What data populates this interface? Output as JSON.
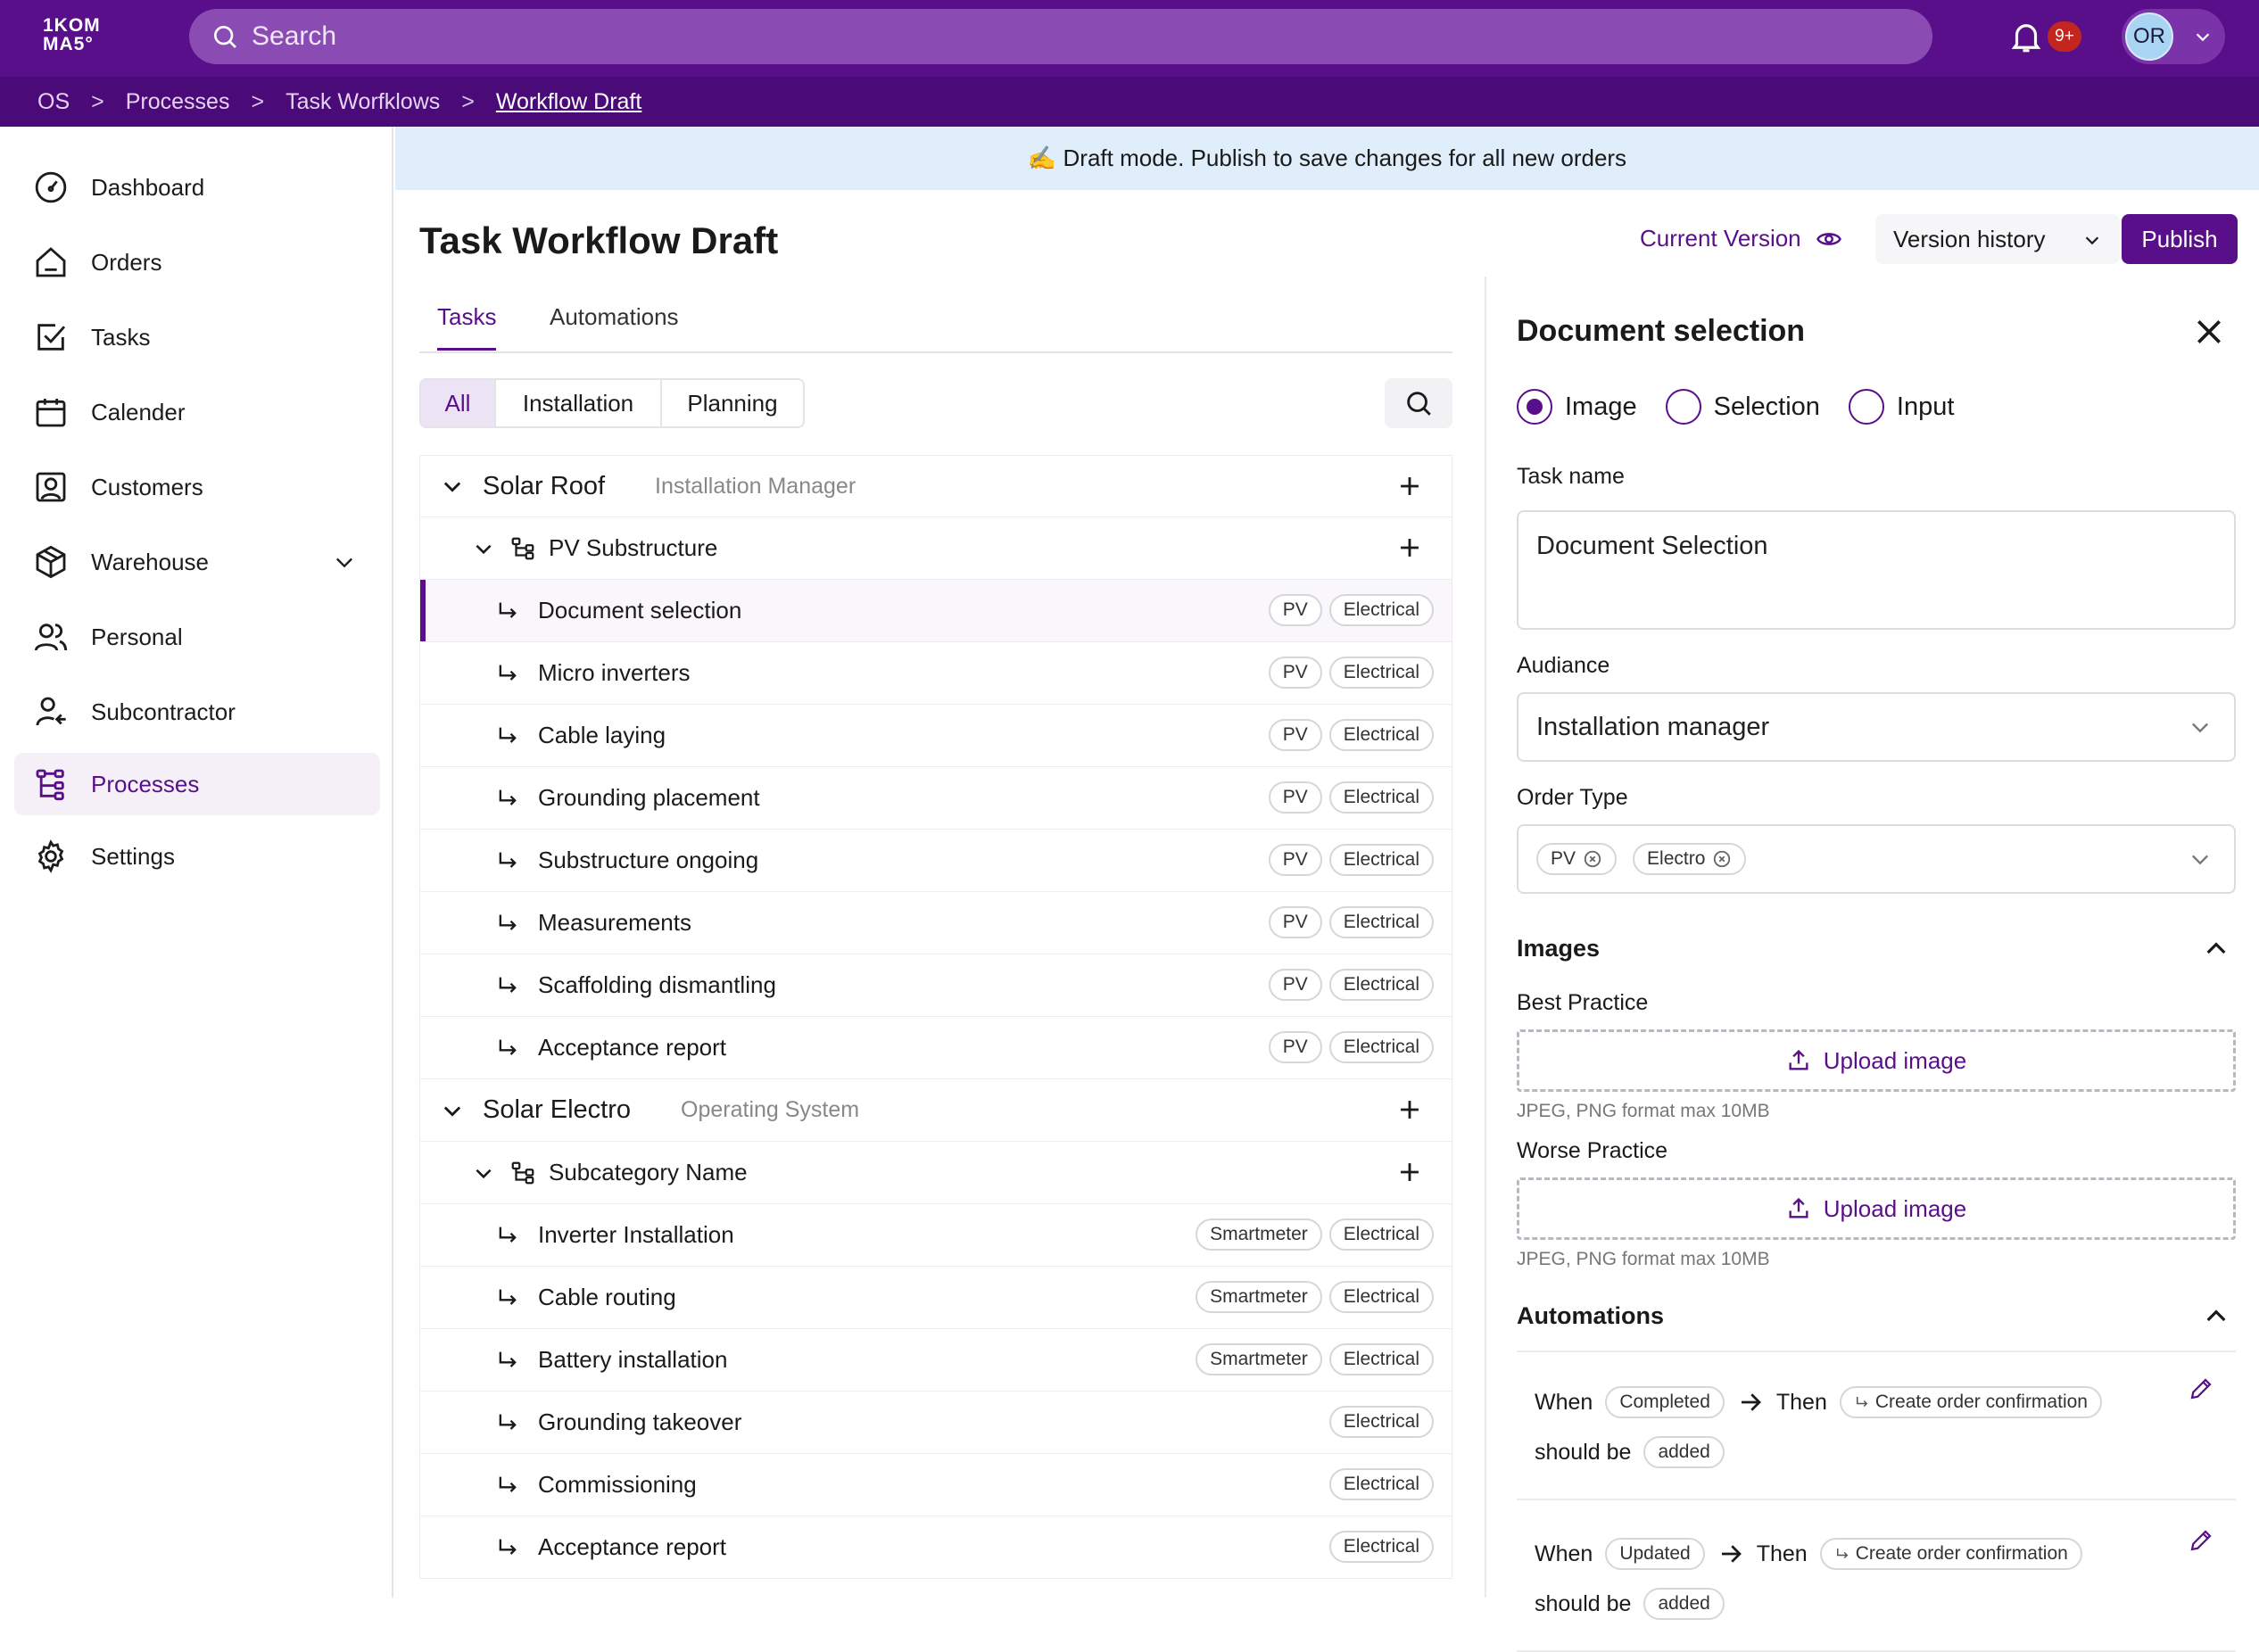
{
  "topbar": {
    "logo_line1": "1KOM",
    "logo_line2": "MA5°",
    "search_placeholder": "Search",
    "notification_count": "9+",
    "user_initials": "OR"
  },
  "breadcrumb": [
    "OS",
    "Processes",
    "Task Worfklows",
    "Workflow Draft"
  ],
  "sidebar": {
    "items": [
      {
        "label": "Dashboard",
        "icon": "gauge-icon"
      },
      {
        "label": "Orders",
        "icon": "home-icon"
      },
      {
        "label": "Tasks",
        "icon": "checkbox-icon"
      },
      {
        "label": "Calender",
        "icon": "calendar-icon"
      },
      {
        "label": "Customers",
        "icon": "contact-icon"
      },
      {
        "label": "Warehouse",
        "icon": "box-icon"
      },
      {
        "label": "Personal",
        "icon": "users-icon"
      },
      {
        "label": "Subcontractor",
        "icon": "user-arrow-icon"
      },
      {
        "label": "Processes",
        "icon": "process-icon"
      },
      {
        "label": "Settings",
        "icon": "gear-icon"
      }
    ]
  },
  "banner": "✍️ Draft mode. Publish to save changes for all new orders",
  "header": {
    "title": "Task Workflow Draft",
    "current_version": "Current Version",
    "version_history": "Version history",
    "publish": "Publish"
  },
  "tabs": [
    "Tasks",
    "Automations"
  ],
  "filters": [
    "All",
    "Installation",
    "Planning"
  ],
  "categories": [
    {
      "name": "Solar Roof",
      "role": "Installation Manager",
      "subcategory": "PV Substructure",
      "tasks": [
        {
          "name": "Document selection",
          "tags": [
            "PV",
            "Electrical"
          ]
        },
        {
          "name": "Micro inverters",
          "tags": [
            "PV",
            "Electrical"
          ]
        },
        {
          "name": "Cable laying",
          "tags": [
            "PV",
            "Electrical"
          ]
        },
        {
          "name": "Grounding placement",
          "tags": [
            "PV",
            "Electrical"
          ]
        },
        {
          "name": "Substructure ongoing",
          "tags": [
            "PV",
            "Electrical"
          ]
        },
        {
          "name": "Measurements",
          "tags": [
            "PV",
            "Electrical"
          ]
        },
        {
          "name": "Scaffolding dismantling",
          "tags": [
            "PV",
            "Electrical"
          ]
        },
        {
          "name": "Acceptance report",
          "tags": [
            "PV",
            "Electrical"
          ]
        }
      ]
    },
    {
      "name": "Solar Electro",
      "role": "Operating System",
      "subcategory": "Subcategory Name",
      "tasks": [
        {
          "name": "Inverter Installation",
          "tags": [
            "Smartmeter",
            "Electrical"
          ]
        },
        {
          "name": "Cable routing",
          "tags": [
            "Smartmeter",
            "Electrical"
          ]
        },
        {
          "name": "Battery installation",
          "tags": [
            "Smartmeter",
            "Electrical"
          ]
        },
        {
          "name": "Grounding takeover",
          "tags": [
            "Electrical"
          ]
        },
        {
          "name": "Commissioning",
          "tags": [
            "Electrical"
          ]
        },
        {
          "name": "Acceptance report",
          "tags": [
            "Electrical"
          ]
        }
      ]
    }
  ],
  "panel": {
    "title": "Document selection",
    "types": [
      "Image",
      "Selection",
      "Input"
    ],
    "task_name_label": "Task name",
    "task_name_value": "Document Selection",
    "audience_label": "Audiance",
    "audience_value": "Installation manager",
    "order_type_label": "Order Type",
    "order_types": [
      "PV",
      "Electro"
    ],
    "images_label": "Images",
    "best_practice_label": "Best Practice",
    "worse_practice_label": "Worse Practice",
    "upload_label": "Upload image",
    "upload_hint": "JPEG, PNG format max 10MB",
    "automations_label": "Automations",
    "automations": [
      {
        "when": "When",
        "trigger": "Completed",
        "then": "Then",
        "action": "Create order confirmation",
        "should_be": "should be",
        "state": "added"
      },
      {
        "when": "When",
        "trigger": "Updated",
        "then": "Then",
        "action": "Create order confirmation",
        "should_be": "should be",
        "state": "added"
      }
    ]
  },
  "colors": {
    "brand": "#5a0f8a",
    "topbar": "#5a0f8a",
    "banner": "#dfeefa"
  }
}
